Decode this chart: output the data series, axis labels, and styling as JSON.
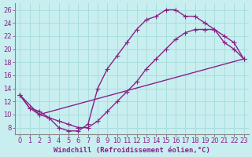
{
  "title": "",
  "xlabel": "Windchill (Refroidissement éolien,°C)",
  "ylabel": "",
  "bg_color": "#c8eef0",
  "grid_color": "#aadddd",
  "line_color": "#882288",
  "xlim": [
    -0.5,
    23.5
  ],
  "ylim": [
    7,
    27
  ],
  "xticks": [
    0,
    1,
    2,
    3,
    4,
    5,
    6,
    7,
    8,
    9,
    10,
    11,
    12,
    13,
    14,
    15,
    16,
    17,
    18,
    19,
    20,
    21,
    22,
    23
  ],
  "yticks": [
    8,
    10,
    12,
    14,
    16,
    18,
    20,
    22,
    24,
    26
  ],
  "line1_x": [
    0,
    1,
    2,
    3,
    4,
    5,
    6,
    7,
    8,
    9,
    10,
    11,
    12,
    13,
    14,
    15,
    16,
    17,
    18,
    19,
    20,
    21,
    22,
    23
  ],
  "line1_y": [
    13,
    11,
    10.5,
    9.5,
    8,
    7.5,
    7.5,
    8.5,
    14,
    17,
    19,
    21,
    23,
    24.5,
    25,
    26,
    26,
    25,
    25,
    24,
    23,
    21,
    20,
    18.5
  ],
  "line2_x": [
    0,
    1,
    2,
    3,
    4,
    5,
    6,
    7,
    8,
    9,
    10,
    11,
    12,
    13,
    14,
    15,
    16,
    17,
    18,
    19,
    20,
    21,
    22,
    23
  ],
  "line2_y": [
    13,
    11,
    10,
    9.5,
    9,
    8.5,
    8,
    8,
    9,
    10.5,
    12,
    13.5,
    15,
    17,
    18.5,
    20,
    21.5,
    22.5,
    23,
    23,
    23,
    22,
    21,
    18.5
  ],
  "line3_x": [
    0,
    2,
    23
  ],
  "line3_y": [
    13,
    10,
    18.5
  ],
  "marker_style": "P",
  "marker_size": 3,
  "linewidth": 1.0,
  "xlabel_fontsize": 6.5,
  "tick_fontsize": 6,
  "spine_color": "#888888"
}
